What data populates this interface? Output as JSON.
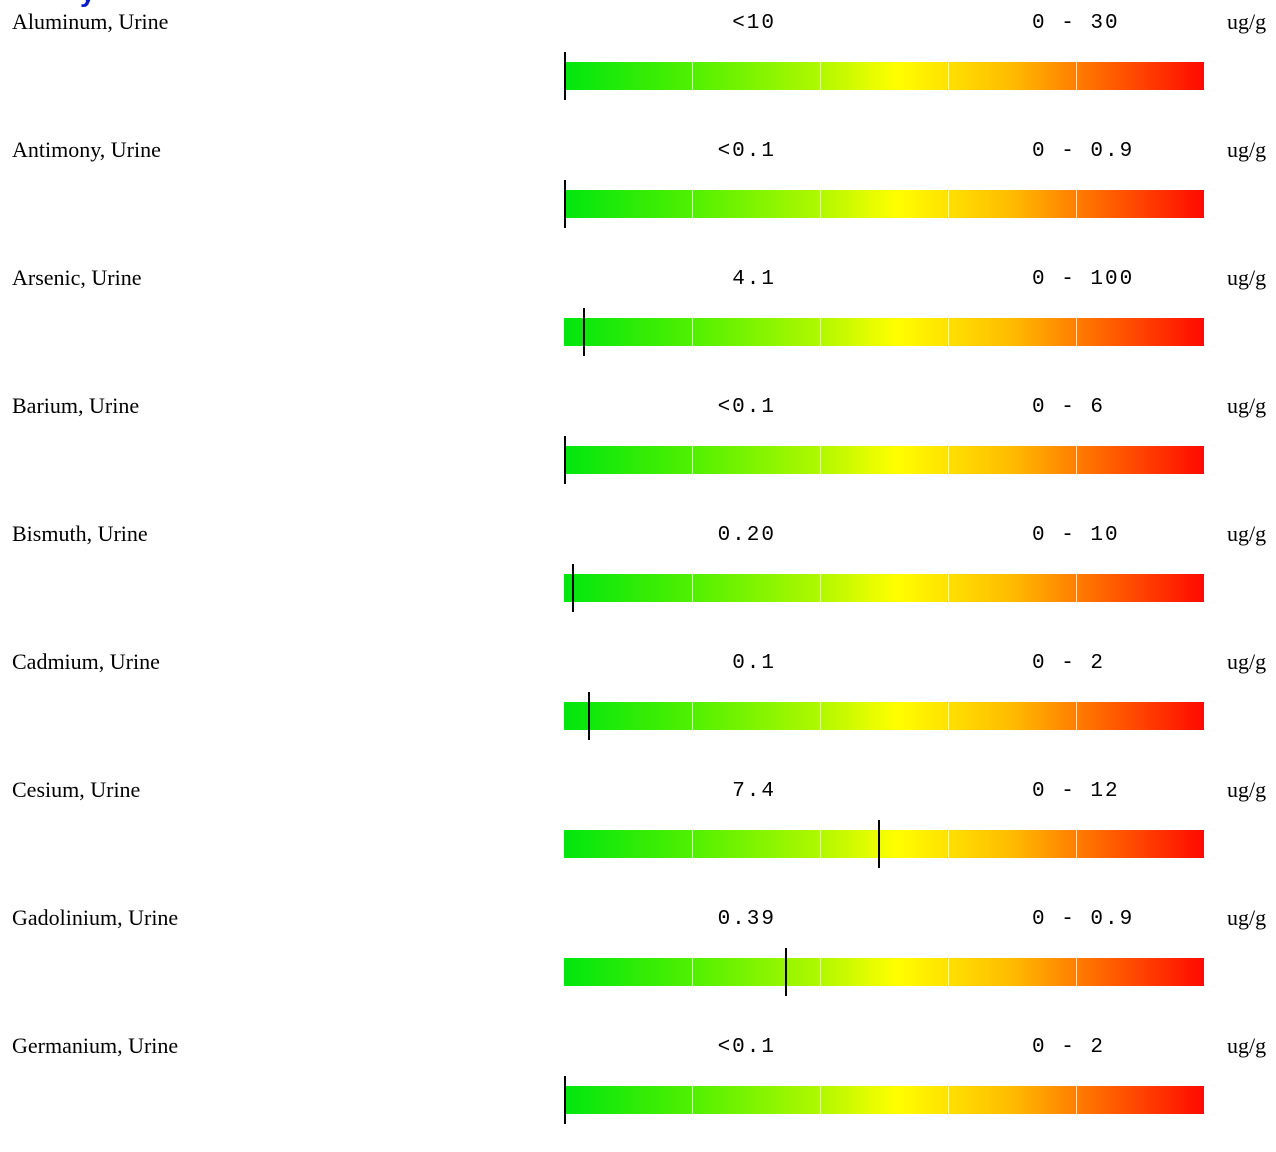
{
  "report": {
    "rows": [
      {
        "analyte": "Aluminum, Urine",
        "result": "<10",
        "range": "0 - 30",
        "units": "ug/g",
        "marker_fraction": 0.0
      },
      {
        "analyte": "Antimony, Urine",
        "result": "<0.1",
        "range": "0 - 0.9",
        "units": "ug/g",
        "marker_fraction": 0.0
      },
      {
        "analyte": "Arsenic, Urine",
        "result": "4.1",
        "range": "0 - 100",
        "units": "ug/g",
        "marker_fraction": 0.029
      },
      {
        "analyte": "Barium, Urine",
        "result": "<0.1",
        "range": "0 - 6",
        "units": "ug/g",
        "marker_fraction": 0.0
      },
      {
        "analyte": "Bismuth, Urine",
        "result": "0.20",
        "range": "0 - 10",
        "units": "ug/g",
        "marker_fraction": 0.012
      },
      {
        "analyte": "Cadmium, Urine",
        "result": "0.1",
        "range": "0 - 2",
        "units": "ug/g",
        "marker_fraction": 0.037
      },
      {
        "analyte": "Cesium, Urine",
        "result": "7.4",
        "range": "0 - 12",
        "units": "ug/g",
        "marker_fraction": 0.491
      },
      {
        "analyte": "Gadolinium, Urine",
        "result": "0.39",
        "range": "0 - 0.9",
        "units": "ug/g",
        "marker_fraction": 0.346
      },
      {
        "analyte": "Germanium, Urine",
        "result": "<0.1",
        "range": "0 - 2",
        "units": "ug/g",
        "marker_fraction": 0.0
      }
    ]
  },
  "colors": {
    "bar_start": "#00e60e",
    "bar_mid": "#ffff00",
    "bar_end": "#ff0a00",
    "title": "#0a1cc8",
    "marker": "#000000"
  }
}
